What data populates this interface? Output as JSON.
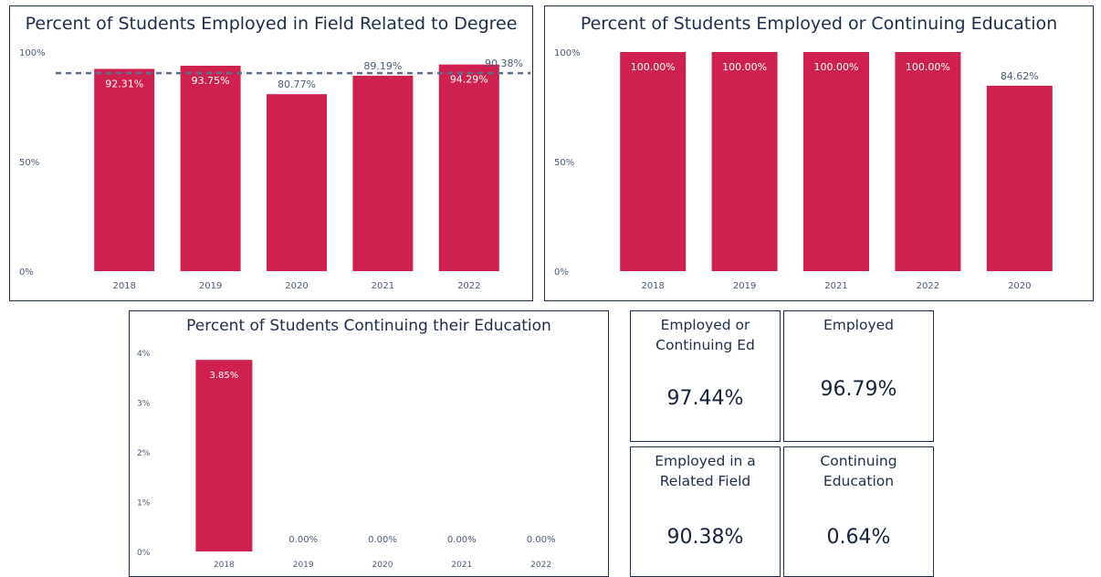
{
  "chart_data": [
    {
      "type": "bar",
      "title": "Percent of Students Employed in Field Related to Degree",
      "categories": [
        "2018",
        "2019",
        "2020",
        "2021",
        "2022"
      ],
      "values": [
        92.31,
        93.75,
        80.77,
        89.19,
        94.29
      ],
      "value_labels": [
        "92.31%",
        "93.75%",
        "80.77%",
        "89.19%",
        "94.29%"
      ],
      "label_inside": [
        true,
        true,
        false,
        false,
        true
      ],
      "y_ticks": [
        "0%",
        "50%",
        "100%"
      ],
      "ylim": [
        0,
        100
      ],
      "reference_line": {
        "value": 90.38,
        "label": "90.38%"
      },
      "bar_color": "#cf2150"
    },
    {
      "type": "bar",
      "title": "Percent of Students Employed or Continuing Education",
      "categories": [
        "2018",
        "2019",
        "2021",
        "2022",
        "2020"
      ],
      "values": [
        100,
        100,
        100,
        100,
        84.62
      ],
      "value_labels": [
        "100.00%",
        "100.00%",
        "100.00%",
        "100.00%",
        "84.62%"
      ],
      "label_inside": [
        true,
        true,
        true,
        true,
        false
      ],
      "y_ticks": [
        "0%",
        "50%",
        "100%"
      ],
      "ylim": [
        0,
        100
      ],
      "bar_color": "#cf2150"
    },
    {
      "type": "bar",
      "title": "Percent of Students Continuing their Education",
      "categories": [
        "2018",
        "2019",
        "2020",
        "2021",
        "2022"
      ],
      "values": [
        3.85,
        0,
        0,
        0,
        0
      ],
      "value_labels": [
        "3.85%",
        "0.00%",
        "0.00%",
        "0.00%",
        "0.00%"
      ],
      "label_inside": [
        true,
        false,
        false,
        false,
        false
      ],
      "y_ticks": [
        "0%",
        "1%",
        "2%",
        "3%",
        "4%"
      ],
      "ylim": [
        0,
        4
      ],
      "bar_color": "#cf2150"
    }
  ],
  "kpis": {
    "employed_or_continuing": {
      "label": "Employed or Continuing Ed",
      "value": "97.44%"
    },
    "employed": {
      "label": "Employed",
      "value": "96.79%"
    },
    "related_field": {
      "label": "Employed in a Related Field",
      "value": "90.38%"
    },
    "continuing": {
      "label": "Continuing Education",
      "value": "0.64%"
    }
  }
}
